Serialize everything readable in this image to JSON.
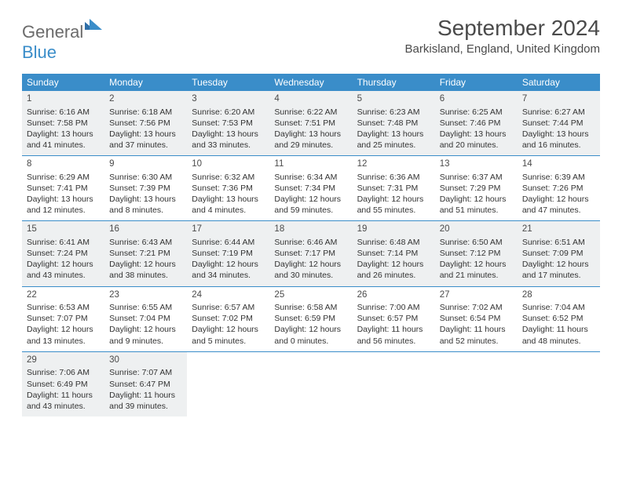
{
  "logo": {
    "part1": "General",
    "part2": "Blue"
  },
  "title": "September 2024",
  "location": "Barkisland, England, United Kingdom",
  "colors": {
    "header_bg": "#3a8dc9",
    "shaded_bg": "#eef0f1",
    "text": "#333333",
    "title_text": "#4a4a4a",
    "border": "#3a8dc9",
    "white": "#ffffff"
  },
  "day_headers": [
    "Sunday",
    "Monday",
    "Tuesday",
    "Wednesday",
    "Thursday",
    "Friday",
    "Saturday"
  ],
  "shaded_rows": [
    0,
    2,
    4
  ],
  "weeks": [
    [
      {
        "day": "1",
        "sunrise": "Sunrise: 6:16 AM",
        "sunset": "Sunset: 7:58 PM",
        "daylight": "Daylight: 13 hours and 41 minutes."
      },
      {
        "day": "2",
        "sunrise": "Sunrise: 6:18 AM",
        "sunset": "Sunset: 7:56 PM",
        "daylight": "Daylight: 13 hours and 37 minutes."
      },
      {
        "day": "3",
        "sunrise": "Sunrise: 6:20 AM",
        "sunset": "Sunset: 7:53 PM",
        "daylight": "Daylight: 13 hours and 33 minutes."
      },
      {
        "day": "4",
        "sunrise": "Sunrise: 6:22 AM",
        "sunset": "Sunset: 7:51 PM",
        "daylight": "Daylight: 13 hours and 29 minutes."
      },
      {
        "day": "5",
        "sunrise": "Sunrise: 6:23 AM",
        "sunset": "Sunset: 7:48 PM",
        "daylight": "Daylight: 13 hours and 25 minutes."
      },
      {
        "day": "6",
        "sunrise": "Sunrise: 6:25 AM",
        "sunset": "Sunset: 7:46 PM",
        "daylight": "Daylight: 13 hours and 20 minutes."
      },
      {
        "day": "7",
        "sunrise": "Sunrise: 6:27 AM",
        "sunset": "Sunset: 7:44 PM",
        "daylight": "Daylight: 13 hours and 16 minutes."
      }
    ],
    [
      {
        "day": "8",
        "sunrise": "Sunrise: 6:29 AM",
        "sunset": "Sunset: 7:41 PM",
        "daylight": "Daylight: 13 hours and 12 minutes."
      },
      {
        "day": "9",
        "sunrise": "Sunrise: 6:30 AM",
        "sunset": "Sunset: 7:39 PM",
        "daylight": "Daylight: 13 hours and 8 minutes."
      },
      {
        "day": "10",
        "sunrise": "Sunrise: 6:32 AM",
        "sunset": "Sunset: 7:36 PM",
        "daylight": "Daylight: 13 hours and 4 minutes."
      },
      {
        "day": "11",
        "sunrise": "Sunrise: 6:34 AM",
        "sunset": "Sunset: 7:34 PM",
        "daylight": "Daylight: 12 hours and 59 minutes."
      },
      {
        "day": "12",
        "sunrise": "Sunrise: 6:36 AM",
        "sunset": "Sunset: 7:31 PM",
        "daylight": "Daylight: 12 hours and 55 minutes."
      },
      {
        "day": "13",
        "sunrise": "Sunrise: 6:37 AM",
        "sunset": "Sunset: 7:29 PM",
        "daylight": "Daylight: 12 hours and 51 minutes."
      },
      {
        "day": "14",
        "sunrise": "Sunrise: 6:39 AM",
        "sunset": "Sunset: 7:26 PM",
        "daylight": "Daylight: 12 hours and 47 minutes."
      }
    ],
    [
      {
        "day": "15",
        "sunrise": "Sunrise: 6:41 AM",
        "sunset": "Sunset: 7:24 PM",
        "daylight": "Daylight: 12 hours and 43 minutes."
      },
      {
        "day": "16",
        "sunrise": "Sunrise: 6:43 AM",
        "sunset": "Sunset: 7:21 PM",
        "daylight": "Daylight: 12 hours and 38 minutes."
      },
      {
        "day": "17",
        "sunrise": "Sunrise: 6:44 AM",
        "sunset": "Sunset: 7:19 PM",
        "daylight": "Daylight: 12 hours and 34 minutes."
      },
      {
        "day": "18",
        "sunrise": "Sunrise: 6:46 AM",
        "sunset": "Sunset: 7:17 PM",
        "daylight": "Daylight: 12 hours and 30 minutes."
      },
      {
        "day": "19",
        "sunrise": "Sunrise: 6:48 AM",
        "sunset": "Sunset: 7:14 PM",
        "daylight": "Daylight: 12 hours and 26 minutes."
      },
      {
        "day": "20",
        "sunrise": "Sunrise: 6:50 AM",
        "sunset": "Sunset: 7:12 PM",
        "daylight": "Daylight: 12 hours and 21 minutes."
      },
      {
        "day": "21",
        "sunrise": "Sunrise: 6:51 AM",
        "sunset": "Sunset: 7:09 PM",
        "daylight": "Daylight: 12 hours and 17 minutes."
      }
    ],
    [
      {
        "day": "22",
        "sunrise": "Sunrise: 6:53 AM",
        "sunset": "Sunset: 7:07 PM",
        "daylight": "Daylight: 12 hours and 13 minutes."
      },
      {
        "day": "23",
        "sunrise": "Sunrise: 6:55 AM",
        "sunset": "Sunset: 7:04 PM",
        "daylight": "Daylight: 12 hours and 9 minutes."
      },
      {
        "day": "24",
        "sunrise": "Sunrise: 6:57 AM",
        "sunset": "Sunset: 7:02 PM",
        "daylight": "Daylight: 12 hours and 5 minutes."
      },
      {
        "day": "25",
        "sunrise": "Sunrise: 6:58 AM",
        "sunset": "Sunset: 6:59 PM",
        "daylight": "Daylight: 12 hours and 0 minutes."
      },
      {
        "day": "26",
        "sunrise": "Sunrise: 7:00 AM",
        "sunset": "Sunset: 6:57 PM",
        "daylight": "Daylight: 11 hours and 56 minutes."
      },
      {
        "day": "27",
        "sunrise": "Sunrise: 7:02 AM",
        "sunset": "Sunset: 6:54 PM",
        "daylight": "Daylight: 11 hours and 52 minutes."
      },
      {
        "day": "28",
        "sunrise": "Sunrise: 7:04 AM",
        "sunset": "Sunset: 6:52 PM",
        "daylight": "Daylight: 11 hours and 48 minutes."
      }
    ],
    [
      {
        "day": "29",
        "sunrise": "Sunrise: 7:06 AM",
        "sunset": "Sunset: 6:49 PM",
        "daylight": "Daylight: 11 hours and 43 minutes."
      },
      {
        "day": "30",
        "sunrise": "Sunrise: 7:07 AM",
        "sunset": "Sunset: 6:47 PM",
        "daylight": "Daylight: 11 hours and 39 minutes."
      },
      null,
      null,
      null,
      null,
      null
    ]
  ]
}
